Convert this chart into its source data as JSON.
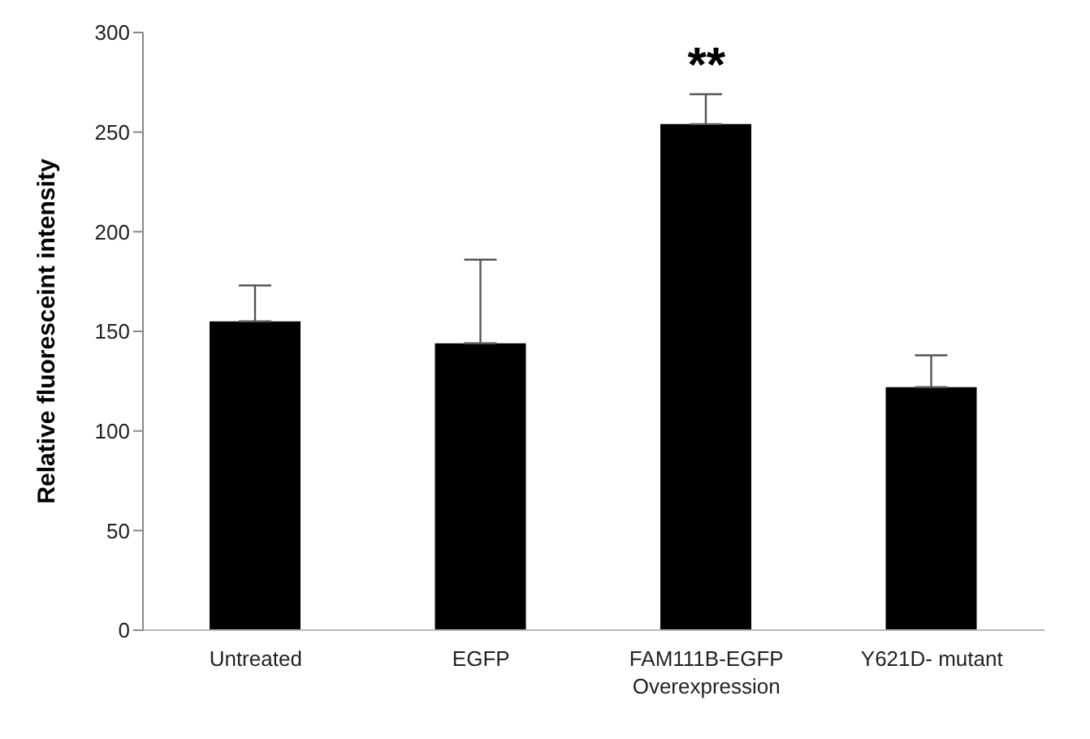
{
  "chart_data": {
    "type": "bar",
    "ylabel": "Relative fluoresceint intensity",
    "categories": [
      "Untreated",
      "EGFP",
      "FAM111B-EGFP\nOverexpression",
      "Y621D- mutant"
    ],
    "values": [
      155,
      144,
      254,
      122
    ],
    "errors": [
      [
        155,
        173
      ],
      [
        144,
        186
      ],
      [
        254,
        269
      ],
      [
        122,
        138
      ]
    ],
    "color": "#000000",
    "ylim": [
      0,
      300
    ],
    "yticks": [
      0,
      50,
      100,
      150,
      200,
      250,
      300
    ],
    "annotations": [
      "**"
    ]
  }
}
